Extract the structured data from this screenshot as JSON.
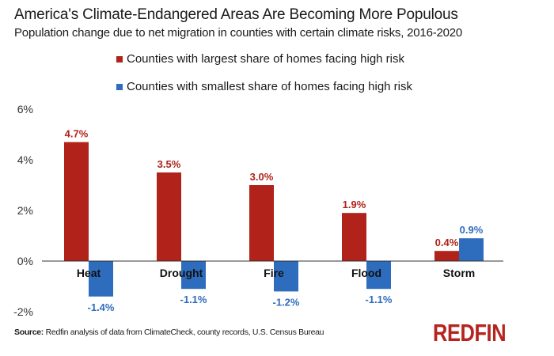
{
  "colors": {
    "largest": "#B0221A",
    "smallest": "#2E6DBE",
    "axis": "#333333",
    "text": "#1a1a1a"
  },
  "source_label": "Source:",
  "source_text": "Redfin analysis of data from ClimateCheck, county records, U.S. Census Bureau",
  "logo_text": "REDFIN",
  "chart_data": {
    "type": "bar",
    "title": "America's Climate-Endangered Areas Are Becoming More Populous",
    "subtitle": "Population change due to net migration in counties with certain climate risks, 2016-2020",
    "xlabel": "",
    "ylabel": "",
    "categories": [
      "Heat",
      "Drought",
      "Fire",
      "Flood",
      "Storm"
    ],
    "series": [
      {
        "name": "Counties with largest share of homes facing high risk",
        "color": "#B0221A",
        "values": [
          4.7,
          3.5,
          3.0,
          1.9,
          0.4
        ],
        "labels": [
          "4.7%",
          "3.5%",
          "3.0%",
          "1.9%",
          "0.4%"
        ]
      },
      {
        "name": "Counties with smallest share of homes facing high risk",
        "color": "#2E6DBE",
        "values": [
          -1.4,
          -1.1,
          -1.2,
          -1.1,
          0.9
        ],
        "labels": [
          "-1.4%",
          "-1.1%",
          "-1.2%",
          "-1.1%",
          "0.9%"
        ]
      }
    ],
    "yticks": [
      6,
      4,
      2,
      0,
      -2
    ],
    "ytick_labels": [
      "6%",
      "4%",
      "2%",
      "0%",
      "-2%"
    ],
    "ylim": [
      -2,
      6
    ],
    "grid": false,
    "legend_position": "top-center"
  }
}
